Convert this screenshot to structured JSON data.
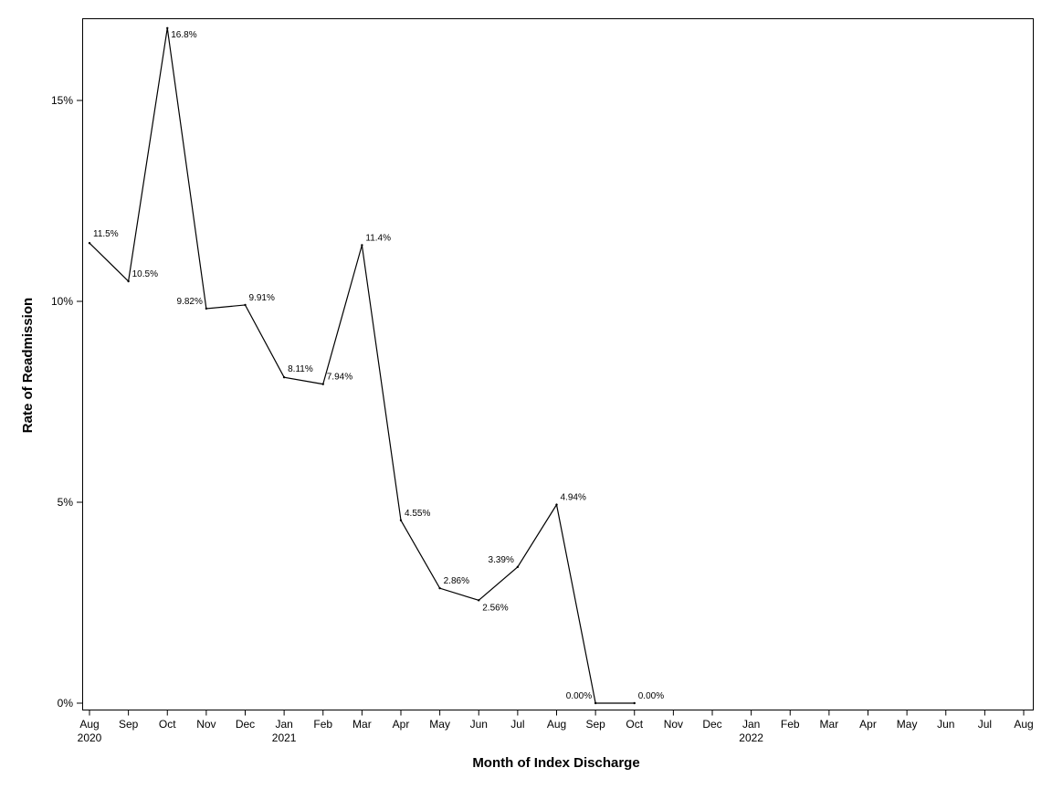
{
  "chart_data": {
    "type": "line",
    "xlabel": "Month of Index Discharge",
    "ylabel": "Rate of Readmission",
    "ylim": [
      0,
      16.8
    ],
    "y_ticks": [
      {
        "value": 0,
        "label": "0%"
      },
      {
        "value": 5,
        "label": "5%"
      },
      {
        "value": 10,
        "label": "10%"
      },
      {
        "value": 15,
        "label": "15%"
      }
    ],
    "x_ticks": [
      {
        "month": "Aug",
        "year": "2020"
      },
      {
        "month": "Sep",
        "year": ""
      },
      {
        "month": "Oct",
        "year": ""
      },
      {
        "month": "Nov",
        "year": ""
      },
      {
        "month": "Dec",
        "year": ""
      },
      {
        "month": "Jan",
        "year": "2021"
      },
      {
        "month": "Feb",
        "year": ""
      },
      {
        "month": "Mar",
        "year": ""
      },
      {
        "month": "Apr",
        "year": ""
      },
      {
        "month": "May",
        "year": ""
      },
      {
        "month": "Jun",
        "year": ""
      },
      {
        "month": "Jul",
        "year": ""
      },
      {
        "month": "Aug",
        "year": ""
      },
      {
        "month": "Sep",
        "year": ""
      },
      {
        "month": "Oct",
        "year": ""
      },
      {
        "month": "Nov",
        "year": ""
      },
      {
        "month": "Dec",
        "year": ""
      },
      {
        "month": "Jan",
        "year": "2022"
      },
      {
        "month": "Feb",
        "year": ""
      },
      {
        "month": "Mar",
        "year": ""
      },
      {
        "month": "Apr",
        "year": ""
      },
      {
        "month": "May",
        "year": ""
      },
      {
        "month": "Jun",
        "year": ""
      },
      {
        "month": "Jul",
        "year": ""
      },
      {
        "month": "Aug",
        "year": ""
      }
    ],
    "series": [
      {
        "color": "#000000",
        "points": [
          {
            "x": "2020-08",
            "y": 11.45,
            "label": "11.5%"
          },
          {
            "x": "2020-09",
            "y": 10.5,
            "label": "10.5%"
          },
          {
            "x": "2020-10",
            "y": 16.8,
            "label": "16.8%"
          },
          {
            "x": "2020-11",
            "y": 9.82,
            "label": "9.82%"
          },
          {
            "x": "2020-12",
            "y": 9.91,
            "label": "9.91%"
          },
          {
            "x": "2021-01",
            "y": 8.11,
            "label": "8.11%"
          },
          {
            "x": "2021-02",
            "y": 7.94,
            "label": "7.94%"
          },
          {
            "x": "2021-03",
            "y": 11.4,
            "label": "11.4%"
          },
          {
            "x": "2021-04",
            "y": 4.55,
            "label": "4.55%"
          },
          {
            "x": "2021-05",
            "y": 2.86,
            "label": "2.86%"
          },
          {
            "x": "2021-06",
            "y": 2.56,
            "label": "2.56%"
          },
          {
            "x": "2021-07",
            "y": 3.39,
            "label": "3.39%"
          },
          {
            "x": "2021-08",
            "y": 4.94,
            "label": "4.94%"
          },
          {
            "x": "2021-09",
            "y": 0.0,
            "label": "0.00%"
          },
          {
            "x": "2021-10",
            "y": 0.0,
            "label": "0.00%"
          }
        ]
      }
    ],
    "grid": false,
    "legend": "none"
  }
}
